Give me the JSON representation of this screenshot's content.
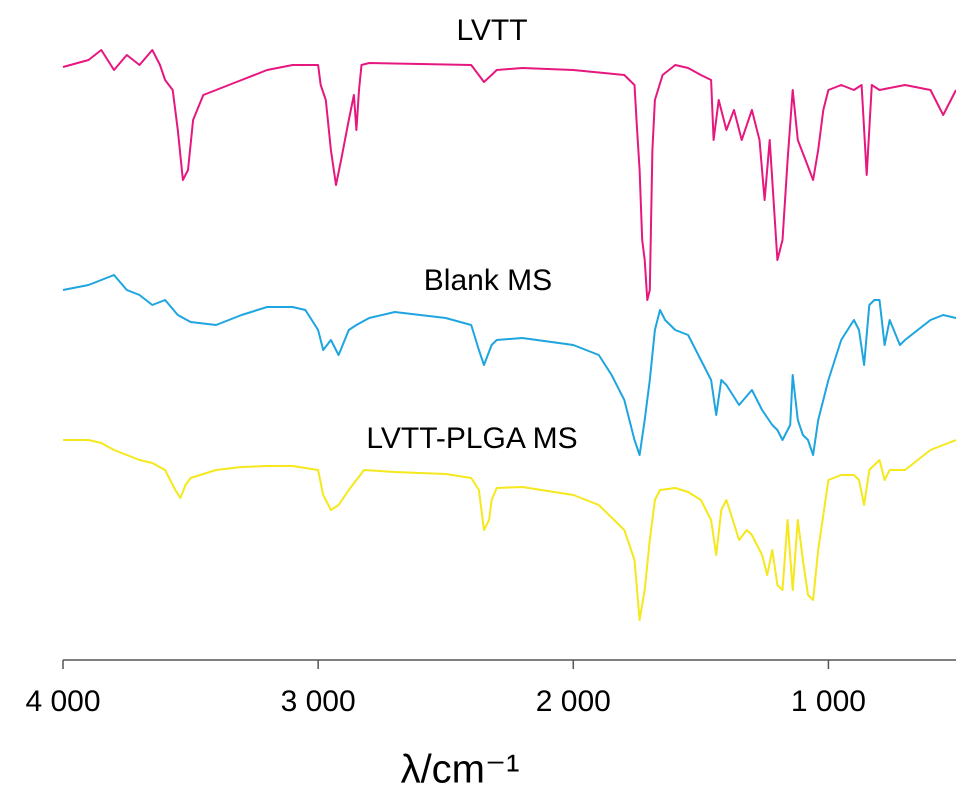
{
  "chart_data": {
    "type": "line",
    "xlabel": "λ/cm⁻¹",
    "xlim": [
      4000,
      500
    ],
    "xticks": [
      {
        "value": 4000,
        "label": "4 000"
      },
      {
        "value": 3000,
        "label": "3 000"
      },
      {
        "value": 2000,
        "label": "2 000"
      },
      {
        "value": 1000,
        "label": "1 000"
      }
    ],
    "ylim": [
      0,
      640
    ],
    "series": [
      {
        "name": "LVTT",
        "color": "#e6177f",
        "x": [
          4000,
          3900,
          3850,
          3800,
          3750,
          3700,
          3650,
          3620,
          3600,
          3570,
          3550,
          3530,
          3510,
          3490,
          3450,
          3400,
          3300,
          3200,
          3100,
          3000,
          2990,
          2970,
          2950,
          2930,
          2910,
          2880,
          2860,
          2850,
          2840,
          2830,
          2800,
          2600,
          2400,
          2350,
          2320,
          2300,
          2200,
          2000,
          1800,
          1760,
          1750,
          1740,
          1730,
          1720,
          1710,
          1700,
          1690,
          1680,
          1650,
          1600,
          1550,
          1500,
          1460,
          1450,
          1430,
          1400,
          1370,
          1340,
          1300,
          1270,
          1250,
          1230,
          1200,
          1180,
          1160,
          1140,
          1120,
          1090,
          1060,
          1040,
          1020,
          1000,
          950,
          900,
          870,
          850,
          830,
          800,
          700,
          600,
          550,
          500
        ],
        "values": [
          593,
          600,
          610,
          590,
          605,
          595,
          610,
          595,
          580,
          570,
          530,
          480,
          490,
          540,
          565,
          570,
          580,
          590,
          595,
          595,
          575,
          560,
          510,
          475,
          500,
          540,
          565,
          530,
          570,
          595,
          597,
          596,
          595,
          578,
          585,
          590,
          592,
          590,
          585,
          575,
          530,
          490,
          420,
          400,
          360,
          370,
          510,
          560,
          585,
          595,
          592,
          585,
          580,
          520,
          560,
          530,
          550,
          520,
          550,
          520,
          460,
          520,
          400,
          420,
          500,
          570,
          520,
          500,
          480,
          510,
          550,
          570,
          575,
          570,
          575,
          485,
          575,
          570,
          575,
          570,
          545,
          570
        ]
      },
      {
        "name": "Blank MS",
        "color": "#1ea5e0",
        "x": [
          4000,
          3900,
          3850,
          3800,
          3750,
          3700,
          3650,
          3600,
          3550,
          3500,
          3400,
          3300,
          3200,
          3100,
          3050,
          3000,
          2980,
          2950,
          2920,
          2880,
          2850,
          2800,
          2700,
          2500,
          2400,
          2370,
          2350,
          2320,
          2300,
          2200,
          2000,
          1900,
          1850,
          1800,
          1760,
          1740,
          1720,
          1700,
          1680,
          1660,
          1640,
          1600,
          1550,
          1500,
          1460,
          1440,
          1420,
          1400,
          1350,
          1300,
          1260,
          1220,
          1200,
          1180,
          1150,
          1140,
          1120,
          1100,
          1080,
          1060,
          1040,
          1000,
          950,
          900,
          880,
          860,
          840,
          820,
          800,
          780,
          760,
          720,
          700,
          650,
          600,
          550,
          500
        ],
        "values": [
          370,
          375,
          380,
          385,
          370,
          365,
          355,
          360,
          345,
          338,
          335,
          345,
          353,
          353,
          350,
          330,
          310,
          320,
          305,
          330,
          335,
          342,
          348,
          342,
          335,
          310,
          295,
          315,
          320,
          322,
          315,
          305,
          285,
          260,
          220,
          205,
          240,
          280,
          330,
          350,
          340,
          330,
          325,
          300,
          280,
          245,
          280,
          275,
          255,
          270,
          250,
          235,
          230,
          220,
          235,
          285,
          240,
          225,
          220,
          205,
          240,
          280,
          320,
          340,
          330,
          295,
          355,
          360,
          360,
          315,
          340,
          315,
          320,
          330,
          340,
          345,
          342
        ]
      },
      {
        "name": "LVTT-PLGA MS",
        "color": "#f5e81c",
        "x": [
          4000,
          3900,
          3850,
          3800,
          3750,
          3700,
          3650,
          3600,
          3560,
          3540,
          3520,
          3500,
          3400,
          3300,
          3200,
          3100,
          3000,
          2980,
          2950,
          2920,
          2880,
          2850,
          2820,
          2700,
          2500,
          2400,
          2370,
          2350,
          2330,
          2320,
          2300,
          2200,
          2000,
          1900,
          1800,
          1760,
          1740,
          1720,
          1700,
          1680,
          1660,
          1600,
          1550,
          1500,
          1460,
          1440,
          1420,
          1400,
          1350,
          1320,
          1300,
          1260,
          1240,
          1220,
          1200,
          1180,
          1160,
          1140,
          1120,
          1100,
          1080,
          1060,
          1040,
          1000,
          950,
          900,
          880,
          860,
          840,
          800,
          780,
          760,
          700,
          650,
          600,
          550,
          500
        ],
        "values": [
          220,
          220,
          217,
          210,
          205,
          200,
          197,
          190,
          170,
          162,
          175,
          182,
          190,
          193,
          194,
          194,
          190,
          165,
          150,
          155,
          170,
          180,
          190,
          188,
          186,
          182,
          170,
          130,
          140,
          160,
          172,
          173,
          165,
          155,
          130,
          100,
          40,
          70,
          120,
          160,
          170,
          172,
          168,
          160,
          140,
          105,
          150,
          160,
          120,
          130,
          125,
          105,
          85,
          110,
          75,
          70,
          140,
          70,
          140,
          100,
          65,
          60,
          110,
          180,
          185,
          185,
          180,
          155,
          190,
          200,
          180,
          190,
          190,
          200,
          210,
          215,
          220
        ]
      }
    ]
  }
}
